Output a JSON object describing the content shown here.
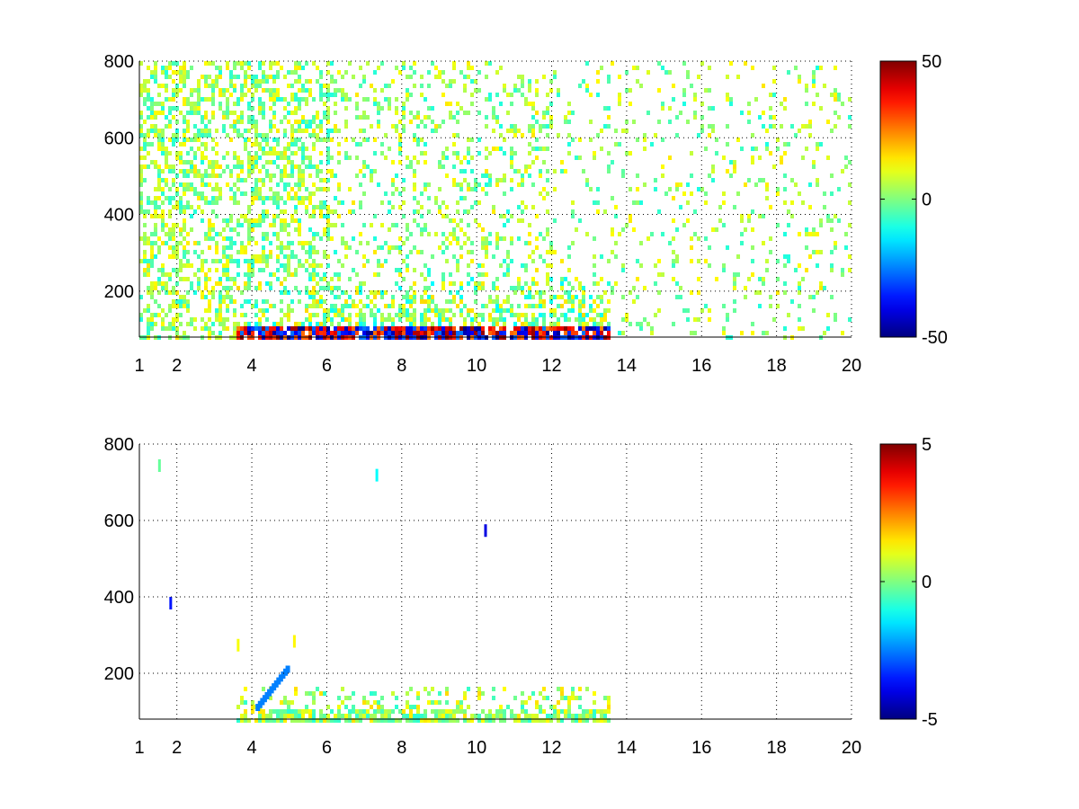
{
  "chart_data": [
    {
      "type": "heatmap",
      "xlim": [
        1,
        20
      ],
      "ylim": [
        80,
        800
      ],
      "xticks": [
        1,
        2,
        4,
        6,
        8,
        10,
        12,
        14,
        16,
        18,
        20
      ],
      "yticks": [
        200,
        400,
        600,
        800
      ],
      "grid": true,
      "colormap": "jet",
      "clim": [
        -50,
        50
      ],
      "colorbar_ticks": [
        -50,
        0,
        50
      ],
      "colorbar_labels": [
        "-50",
        "0",
        "50"
      ],
      "features": {
        "dense_band": {
          "x": [
            3.5,
            13.5
          ],
          "y": [
            80,
            240
          ]
        },
        "strongest_row": {
          "y": 100,
          "values_range": [
            -50,
            50
          ]
        },
        "sparse_region": {
          "x": [
            1,
            20
          ],
          "y": [
            240,
            800
          ],
          "typical_range": [
            -15,
            15
          ]
        }
      }
    },
    {
      "type": "heatmap",
      "xlim": [
        1,
        20
      ],
      "ylim": [
        80,
        800
      ],
      "xticks": [
        1,
        2,
        4,
        6,
        8,
        10,
        12,
        14,
        16,
        18,
        20
      ],
      "yticks": [
        200,
        400,
        600,
        800
      ],
      "grid": true,
      "colormap": "jet",
      "clim": [
        -5,
        5
      ],
      "colorbar_ticks": [
        -5,
        0,
        5
      ],
      "colorbar_labels": [
        "-5",
        "0",
        "5"
      ],
      "features": {
        "dense_band": {
          "x": [
            3.5,
            13.5
          ],
          "y": [
            80,
            170
          ]
        },
        "diagonal_streak": {
          "x": [
            4.1,
            4.9
          ],
          "y": [
            120,
            220
          ]
        },
        "isolated_points": [
          [
            1.5,
            760
          ],
          [
            1.8,
            400
          ],
          [
            7.3,
            735
          ],
          [
            10.2,
            590
          ],
          [
            5.1,
            300
          ],
          [
            3.6,
            290
          ]
        ]
      }
    }
  ]
}
